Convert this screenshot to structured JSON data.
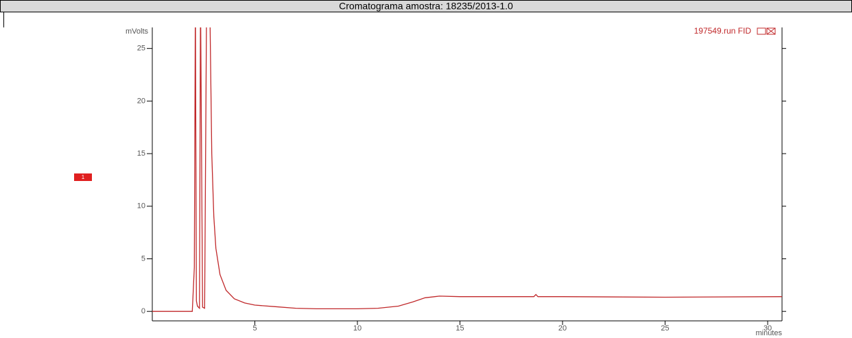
{
  "chart_data": {
    "type": "line",
    "title": "Cromatograma amostra: 18235/2013-1.0",
    "ylabel": "mVolts",
    "xlabel": "minutes",
    "annotation": "1",
    "series": [
      {
        "name": "197549.run FID",
        "color": "#c0282a",
        "x": [
          0,
          1.95,
          2.05,
          2.1,
          2.15,
          2.2,
          2.3,
          2.35,
          2.45,
          2.55,
          2.65,
          2.8,
          2.9,
          3.0,
          3.1,
          3.3,
          3.6,
          4,
          4.5,
          5,
          6,
          7,
          8,
          9,
          10,
          11,
          12,
          12.7,
          13.3,
          14,
          15,
          18.6,
          18.7,
          18.8,
          20,
          25,
          30.7
        ],
        "values": [
          0,
          0,
          4.2,
          30,
          1,
          0.5,
          0.3,
          30,
          0.4,
          0.3,
          30,
          30,
          15,
          9,
          6,
          3.5,
          2,
          1.2,
          0.8,
          0.6,
          0.45,
          0.3,
          0.25,
          0.25,
          0.25,
          0.3,
          0.5,
          0.9,
          1.3,
          1.45,
          1.4,
          1.4,
          1.6,
          1.4,
          1.4,
          1.35,
          1.4
        ]
      }
    ],
    "xlim": [
      0,
      30.7
    ],
    "ylim": [
      -0.9,
      27
    ],
    "xticks": [
      5,
      10,
      15,
      20,
      25,
      30
    ],
    "yticks": [
      0,
      5,
      10,
      15,
      20,
      25
    ]
  }
}
